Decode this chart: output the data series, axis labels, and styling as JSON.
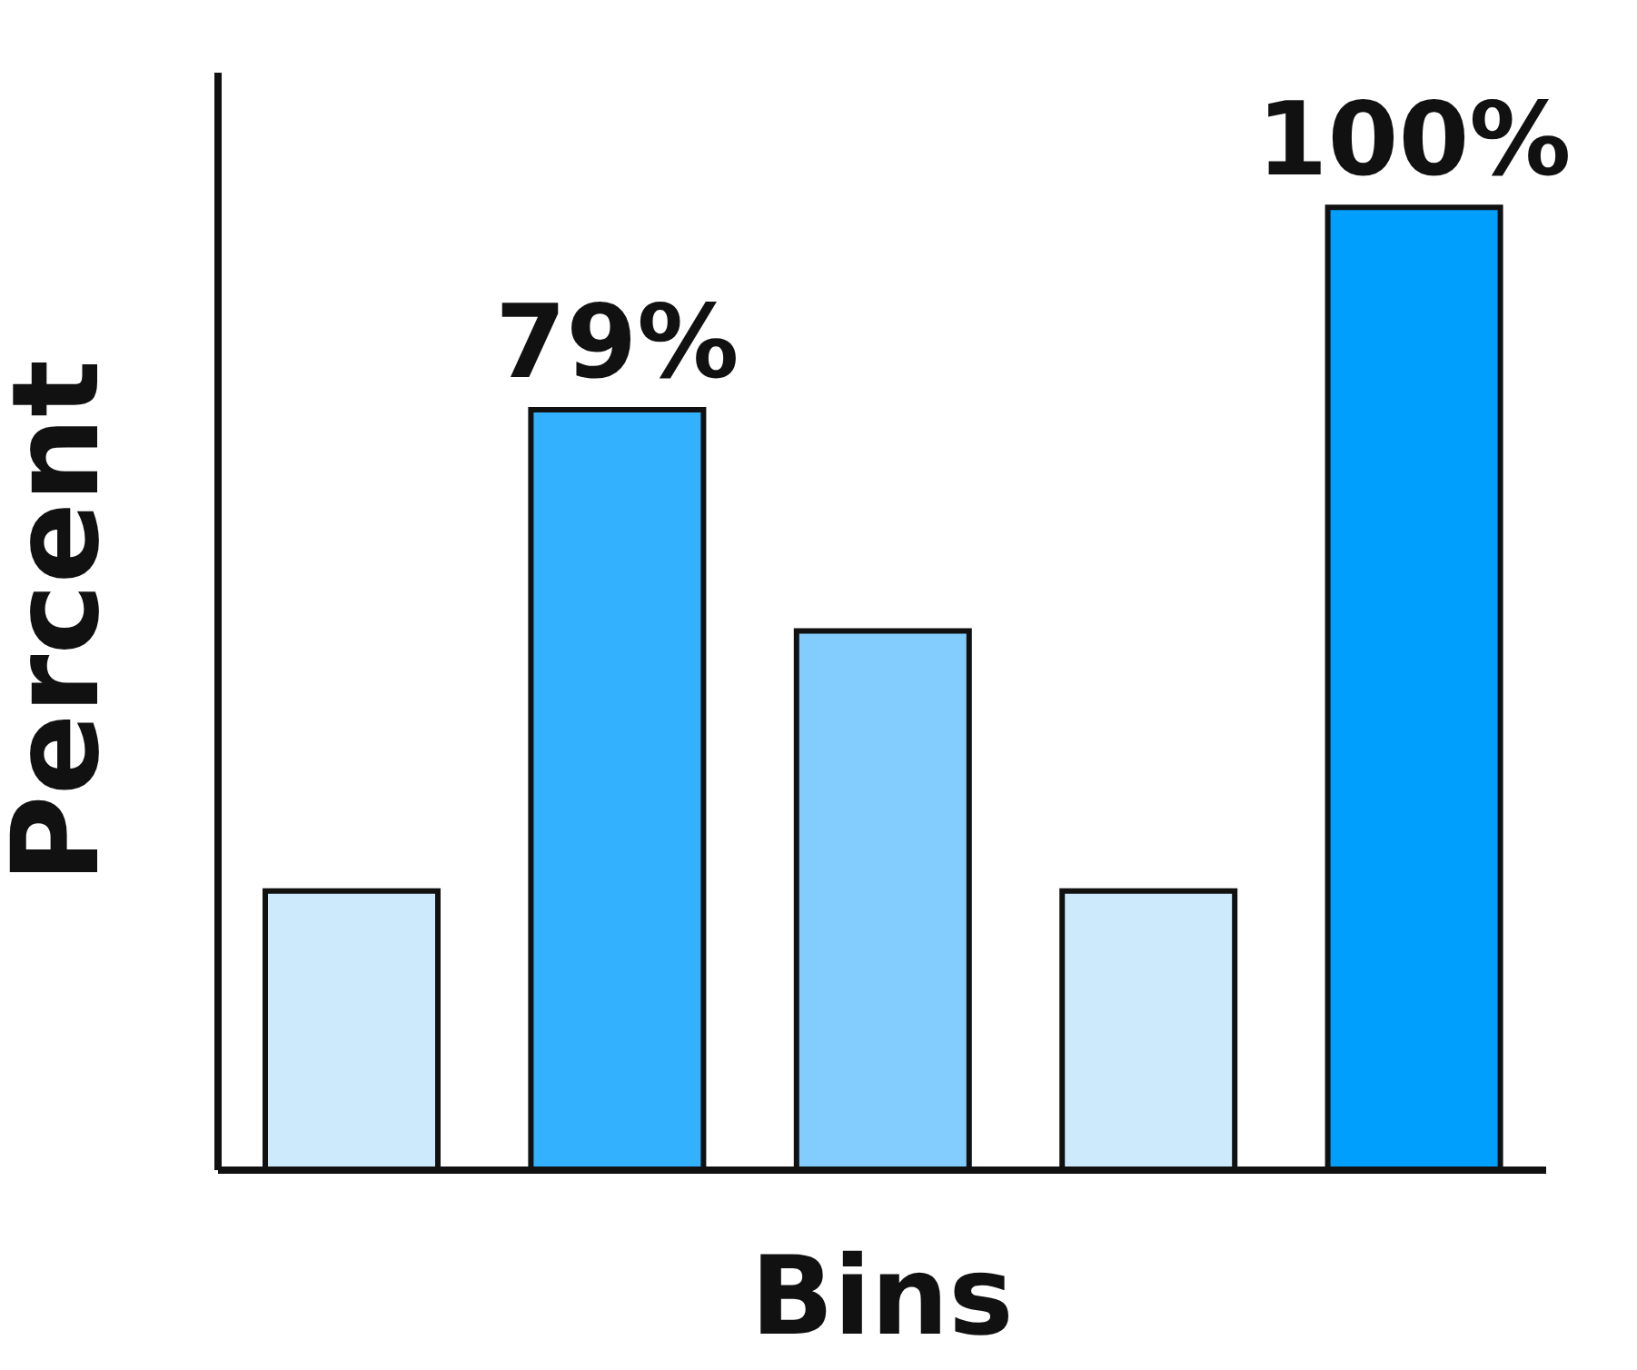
{
  "chart_data": {
    "type": "bar",
    "xlabel": "Bins",
    "ylabel": "Percent",
    "categories": [
      null,
      null,
      null,
      null,
      null
    ],
    "values": [
      29,
      79,
      56,
      29,
      100
    ],
    "colors": [
      "#cdeafd",
      "#33b0fe",
      "#82cdfd",
      "#cdeafd",
      "#009ffd"
    ],
    "value_labels": [
      null,
      "79%",
      null,
      null,
      "100%"
    ],
    "ylim": [
      0,
      114
    ],
    "tick_labels": false,
    "grid": false,
    "legend": false
  }
}
